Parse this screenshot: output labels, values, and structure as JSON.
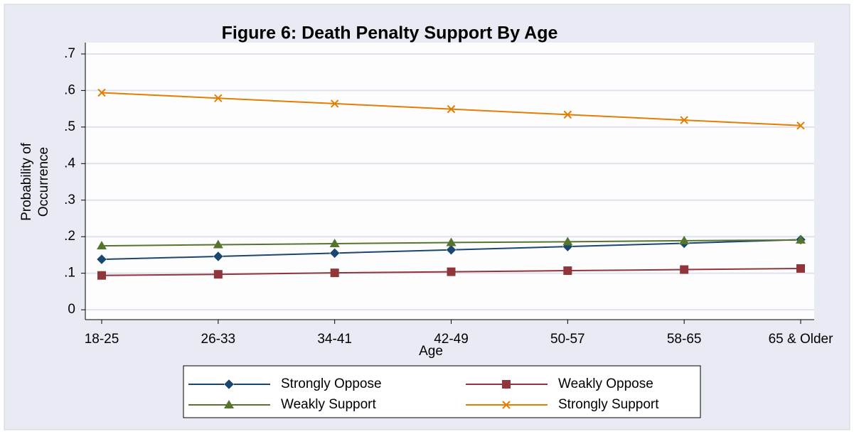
{
  "chart_data": {
    "type": "line",
    "title": "Figure 6: Death Penalty Support By Age",
    "x_label": "Age",
    "y_label": [
      "Probability of",
      "Occurrence"
    ],
    "categories": [
      "18-25",
      "26-33",
      "34-41",
      "42-49",
      "50-57",
      "58-65",
      "65 & Older"
    ],
    "series": [
      {
        "name": "Strongly Oppose",
        "color": "#1a476f",
        "marker": "diamond",
        "values": [
          0.138,
          0.146,
          0.155,
          0.164,
          0.173,
          0.182,
          0.192
        ]
      },
      {
        "name": "Weakly Oppose",
        "color": "#90353b",
        "marker": "square",
        "values": [
          0.094,
          0.097,
          0.101,
          0.104,
          0.107,
          0.11,
          0.113
        ]
      },
      {
        "name": "Weakly Support",
        "color": "#55752f",
        "marker": "triangle",
        "values": [
          0.175,
          0.178,
          0.181,
          0.184,
          0.186,
          0.189,
          0.191
        ]
      },
      {
        "name": "Strongly Support",
        "color": "#e37e00",
        "marker": "x",
        "values": [
          0.594,
          0.579,
          0.564,
          0.549,
          0.534,
          0.519,
          0.504
        ]
      }
    ],
    "ylim": [
      -0.027,
      0.731
    ],
    "yticks": [
      0,
      {
        "value": 0.1,
        "label": ".1"
      },
      {
        "value": 0.2,
        "label": ".2"
      },
      {
        "value": 0.3,
        "label": ".3"
      },
      {
        "value": 0.4,
        "label": ".4"
      },
      {
        "value": 0.5,
        "label": ".5"
      },
      {
        "value": 0.6,
        "label": ".6"
      },
      {
        "value": 0.7,
        "label": ".7"
      }
    ],
    "grid": true,
    "legend": "bottom"
  }
}
